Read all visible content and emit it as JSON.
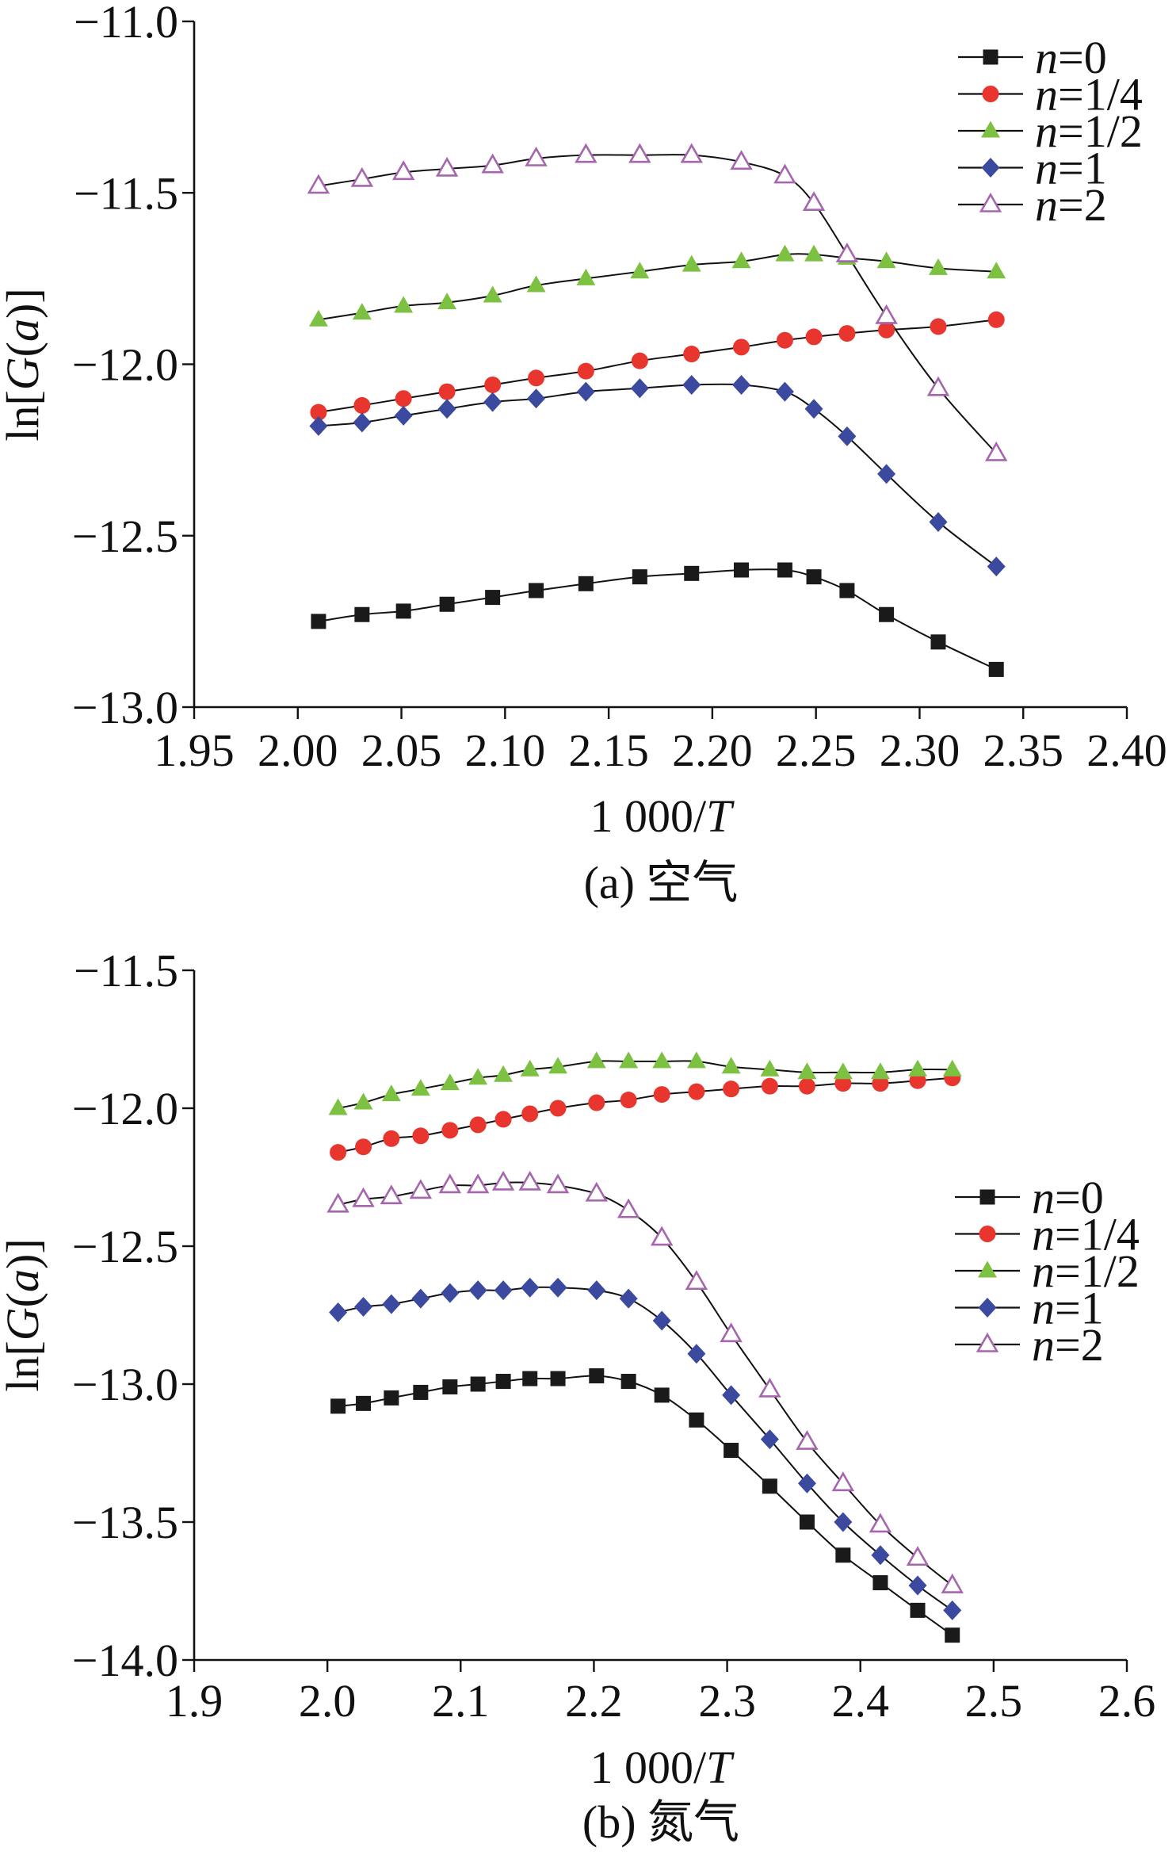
{
  "chart_data": [
    {
      "type": "line",
      "caption": "(a) 空气",
      "xlabel": "1 000/T",
      "ylabel": "ln[G(a)]",
      "xlim": [
        1.95,
        2.4
      ],
      "ylim": [
        -13.0,
        -11.0
      ],
      "xticks": [
        1.95,
        2.0,
        2.05,
        2.1,
        2.15,
        2.2,
        2.25,
        2.3,
        2.35,
        2.4
      ],
      "xtick_labels": [
        "1.95",
        "2.00",
        "2.05",
        "2.10",
        "2.15",
        "2.20",
        "2.25",
        "2.30",
        "2.35",
        "2.40"
      ],
      "yticks": [
        -11.0,
        -11.5,
        -12.0,
        -12.5,
        -13.0
      ],
      "ytick_labels": [
        "−11.0",
        "−11.5",
        "−12.0",
        "−12.5",
        "−13.0"
      ],
      "grid": false,
      "legend": "top-right",
      "x": [
        2.01,
        2.031,
        2.051,
        2.072,
        2.094,
        2.115,
        2.139,
        2.165,
        2.19,
        2.214,
        2.235,
        2.249,
        2.265,
        2.284,
        2.309,
        2.337
      ],
      "series": [
        {
          "name": "n=0",
          "marker": "square",
          "color": "#1a1a1a",
          "values": [
            -12.75,
            -12.73,
            -12.72,
            -12.7,
            -12.68,
            -12.66,
            -12.64,
            -12.62,
            -12.61,
            -12.6,
            -12.6,
            -12.62,
            -12.66,
            -12.73,
            -12.81,
            -12.89
          ]
        },
        {
          "name": "n=1/4",
          "marker": "circle",
          "color": "#e8352e",
          "values": [
            -12.14,
            -12.12,
            -12.1,
            -12.08,
            -12.06,
            -12.04,
            -12.02,
            -11.99,
            -11.97,
            -11.95,
            -11.93,
            -11.92,
            -11.91,
            -11.9,
            -11.89,
            -11.87
          ]
        },
        {
          "name": "n=1/2",
          "marker": "triangle",
          "color": "#7cc142",
          "values": [
            -11.87,
            -11.85,
            -11.83,
            -11.82,
            -11.8,
            -11.77,
            -11.75,
            -11.73,
            -11.71,
            -11.7,
            -11.68,
            -11.68,
            -11.69,
            -11.7,
            -11.72,
            -11.73
          ]
        },
        {
          "name": "n=1",
          "marker": "diamond",
          "color": "#3b4a9e",
          "values": [
            -12.18,
            -12.17,
            -12.15,
            -12.13,
            -12.11,
            -12.1,
            -12.08,
            -12.07,
            -12.06,
            -12.06,
            -12.08,
            -12.13,
            -12.21,
            -12.32,
            -12.46,
            -12.59
          ]
        },
        {
          "name": "n=2",
          "marker": "triangle-open",
          "color": "#a566ad",
          "values": [
            -11.48,
            -11.46,
            -11.44,
            -11.43,
            -11.42,
            -11.4,
            -11.39,
            -11.39,
            -11.39,
            -11.41,
            -11.45,
            -11.53,
            -11.68,
            -11.86,
            -12.07,
            -12.26
          ]
        }
      ]
    },
    {
      "type": "line",
      "caption": "(b) 氮气",
      "xlabel": "1 000/T",
      "ylabel": "ln[G(a)]",
      "xlim": [
        1.9,
        2.6
      ],
      "ylim": [
        -14.0,
        -11.5
      ],
      "xticks": [
        1.9,
        2.0,
        2.1,
        2.2,
        2.3,
        2.4,
        2.5,
        2.6
      ],
      "xtick_labels": [
        "1.9",
        "2.0",
        "2.1",
        "2.2",
        "2.3",
        "2.4",
        "2.5",
        "2.6"
      ],
      "yticks": [
        -11.5,
        -12.0,
        -12.5,
        -13.0,
        -13.5,
        -14.0
      ],
      "ytick_labels": [
        "−11.5",
        "−12.0",
        "−12.5",
        "−13.0",
        "−13.5",
        "−14.0"
      ],
      "grid": false,
      "legend": "right",
      "x": [
        2.008,
        2.027,
        2.048,
        2.07,
        2.092,
        2.113,
        2.132,
        2.152,
        2.173,
        2.202,
        2.226,
        2.251,
        2.277,
        2.303,
        2.332,
        2.36,
        2.387,
        2.415,
        2.443,
        2.469
      ],
      "series": [
        {
          "name": "n=0",
          "marker": "square",
          "color": "#1a1a1a",
          "values": [
            -13.08,
            -13.07,
            -13.05,
            -13.03,
            -13.01,
            -13.0,
            -12.99,
            -12.98,
            -12.98,
            -12.97,
            -12.99,
            -13.04,
            -13.13,
            -13.24,
            -13.37,
            -13.5,
            -13.62,
            -13.72,
            -13.82,
            -13.91
          ]
        },
        {
          "name": "n=1/4",
          "marker": "circle",
          "color": "#e8352e",
          "values": [
            -12.16,
            -12.14,
            -12.11,
            -12.1,
            -12.08,
            -12.06,
            -12.04,
            -12.02,
            -12.0,
            -11.98,
            -11.97,
            -11.95,
            -11.94,
            -11.93,
            -11.92,
            -11.92,
            -11.91,
            -11.91,
            -11.9,
            -11.89
          ]
        },
        {
          "name": "n=1/2",
          "marker": "triangle",
          "color": "#7cc142",
          "values": [
            -12.0,
            -11.98,
            -11.95,
            -11.93,
            -11.91,
            -11.89,
            -11.88,
            -11.86,
            -11.85,
            -11.83,
            -11.83,
            -11.83,
            -11.83,
            -11.85,
            -11.86,
            -11.87,
            -11.87,
            -11.87,
            -11.86,
            -11.86
          ]
        },
        {
          "name": "n=1",
          "marker": "diamond",
          "color": "#3b4a9e",
          "values": [
            -12.74,
            -12.72,
            -12.71,
            -12.69,
            -12.67,
            -12.66,
            -12.66,
            -12.65,
            -12.65,
            -12.66,
            -12.69,
            -12.77,
            -12.89,
            -13.04,
            -13.2,
            -13.36,
            -13.5,
            -13.62,
            -13.73,
            -13.82
          ]
        },
        {
          "name": "n=2",
          "marker": "triangle-open",
          "color": "#a566ad",
          "values": [
            -12.35,
            -12.33,
            -12.32,
            -12.3,
            -12.28,
            -12.28,
            -12.27,
            -12.27,
            -12.28,
            -12.31,
            -12.37,
            -12.47,
            -12.63,
            -12.82,
            -13.02,
            -13.21,
            -13.36,
            -13.51,
            -13.63,
            -13.73
          ]
        }
      ]
    }
  ]
}
